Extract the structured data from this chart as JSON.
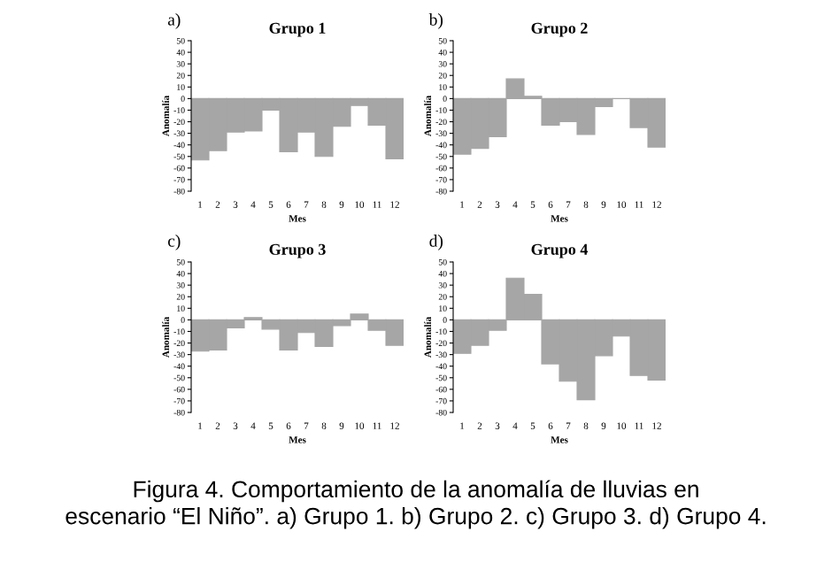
{
  "chart_data": [
    {
      "type": "bar",
      "title": "Grupo 1",
      "xlabel": "Mes",
      "ylabel": "Anomalía",
      "categories": [
        "1",
        "2",
        "3",
        "4",
        "5",
        "6",
        "7",
        "8",
        "9",
        "10",
        "11",
        "12"
      ],
      "color": "#a6a6a6",
      "values": [
        -53,
        -45,
        -29,
        -28,
        -10,
        -46,
        -29,
        -50,
        -24,
        -6,
        -23,
        -52
      ],
      "ylim": [
        -80,
        50
      ],
      "yticks": [
        -80,
        -70,
        -60,
        -50,
        -40,
        -30,
        -20,
        -10,
        0,
        10,
        20,
        30,
        40,
        50
      ],
      "grid": false,
      "annotations": [
        "a)"
      ]
    },
    {
      "type": "bar",
      "title": "Grupo 2",
      "xlabel": "Mes",
      "ylabel": "Anomalía",
      "categories": [
        "1",
        "2",
        "3",
        "4",
        "5",
        "6",
        "7",
        "8",
        "9",
        "10",
        "11",
        "12"
      ],
      "color": "#a6a6a6",
      "values": [
        -48,
        -43,
        -33,
        17,
        2,
        -23,
        -20,
        -31,
        -7,
        0,
        -25,
        -42
      ],
      "ylim": [
        -80,
        50
      ],
      "yticks": [
        -80,
        -70,
        -60,
        -50,
        -40,
        -30,
        -20,
        -10,
        0,
        10,
        20,
        30,
        40,
        50
      ],
      "grid": false,
      "annotations": [
        "b)"
      ]
    },
    {
      "type": "bar",
      "title": "Grupo 3",
      "xlabel": "Mes",
      "ylabel": "Anomalía",
      "categories": [
        "1",
        "2",
        "3",
        "4",
        "5",
        "6",
        "7",
        "8",
        "9",
        "10",
        "11",
        "12"
      ],
      "color": "#a6a6a6",
      "values": [
        -27,
        -26,
        -7,
        2,
        -8,
        -26,
        -11,
        -23,
        -5,
        5,
        -9,
        -22
      ],
      "ylim": [
        -80,
        50
      ],
      "yticks": [
        -80,
        -70,
        -60,
        -50,
        -40,
        -30,
        -20,
        -10,
        0,
        10,
        20,
        30,
        40,
        50
      ],
      "grid": false,
      "annotations": [
        "c)"
      ]
    },
    {
      "type": "bar",
      "title": "Grupo 4",
      "xlabel": "Mes",
      "ylabel": "Anomalía",
      "categories": [
        "1",
        "2",
        "3",
        "4",
        "5",
        "6",
        "7",
        "8",
        "9",
        "10",
        "11",
        "12"
      ],
      "color": "#a6a6a6",
      "values": [
        -29,
        -22,
        -9,
        36,
        22,
        -38,
        -53,
        -69,
        -31,
        -14,
        -48,
        -52
      ],
      "ylim": [
        -80,
        50
      ],
      "yticks": [
        -80,
        -70,
        -60,
        -50,
        -40,
        -30,
        -20,
        -10,
        0,
        10,
        20,
        30,
        40,
        50
      ],
      "grid": false,
      "annotations": [
        "d)",
        "Figura 4. Comportamiento de la anomalía de lluvias en\nescenario “El Niño”. a) Grupo 1. b) Grupo 2. c) Grupo 3. d) Grupo 4."
      ]
    }
  ]
}
